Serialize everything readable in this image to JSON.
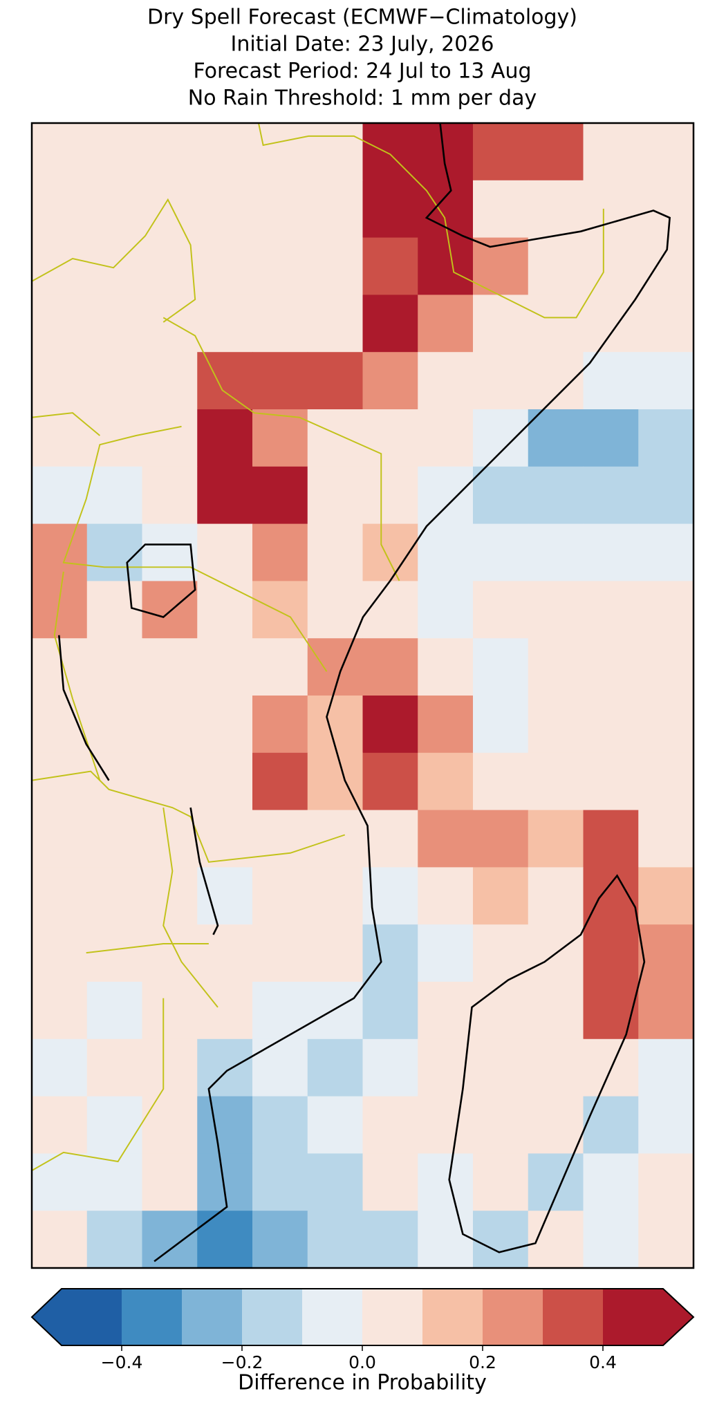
{
  "chart_data": {
    "type": "heatmap",
    "title": [
      "Dry Spell Forecast (ECMWF−Climatology)",
      "Initial Date: 23 July, 2026",
      "Forecast Period: 24 Jul to 13 Aug",
      "No Rain Threshold: 1 mm per day"
    ],
    "colorbar_label": "Difference in Probability",
    "levels": [
      -0.5,
      -0.4,
      -0.3,
      -0.2,
      -0.1,
      0,
      0.1,
      0.2,
      0.3,
      0.4,
      0.5
    ],
    "colors": [
      "#1f5fa5",
      "#3f8bc1",
      "#7fb4d7",
      "#b8d6e8",
      "#e7eef4",
      "#f9e6dd",
      "#f6c0a6",
      "#e8907a",
      "#cc5048",
      "#ac1a2c"
    ],
    "extend": "both",
    "cticks": [
      {
        "value": -0.4,
        "label": "−0.4"
      },
      {
        "value": -0.2,
        "label": "−0.2"
      },
      {
        "value": 0,
        "label": "0.0"
      },
      0.2,
      0.4
    ],
    "values": [
      [
        0.05,
        0.05,
        0.05,
        0.05,
        0.05,
        0.05,
        0.45,
        0.45,
        0.3,
        0.3,
        0.05,
        0.05
      ],
      [
        0.05,
        0.05,
        0.05,
        0.05,
        0.05,
        0.05,
        0.45,
        0.45,
        0.05,
        0.05,
        0.05,
        0.05
      ],
      [
        0.05,
        0.05,
        0.05,
        0.05,
        0.05,
        0.05,
        0.35,
        0.4,
        0.25,
        0.05,
        0.05,
        0.05
      ],
      [
        0.05,
        0.05,
        0.05,
        0.05,
        0.05,
        0.05,
        0.4,
        0.2,
        0.05,
        0.05,
        0.05,
        0.05
      ],
      [
        0.05,
        0.05,
        0.05,
        0.35,
        0.3,
        0.35,
        0.25,
        0.05,
        0.05,
        0.05,
        -0.05,
        -0.05
      ],
      [
        0.05,
        0.05,
        0.05,
        0.45,
        0.25,
        0.05,
        0.05,
        0.05,
        -0.1,
        -0.3,
        -0.3,
        -0.2
      ],
      [
        -0.05,
        -0.05,
        0.05,
        0.4,
        0.4,
        0.05,
        0.05,
        -0.1,
        -0.15,
        -0.15,
        -0.15,
        -0.15
      ],
      [
        0.2,
        -0.15,
        -0.1,
        0.05,
        0.25,
        0.05,
        0.15,
        -0.05,
        -0.1,
        -0.1,
        -0.1,
        -0.1
      ],
      [
        0.25,
        0.05,
        0.2,
        0.05,
        0.1,
        0.05,
        0.05,
        -0.05,
        0.05,
        0.05,
        0.05,
        0.05
      ],
      [
        0.05,
        0.05,
        0.05,
        0.05,
        0.05,
        0.25,
        0.25,
        0.05,
        -0.05,
        0.05,
        0.05,
        0.05
      ],
      [
        0.05,
        0.05,
        0.05,
        0.05,
        0.25,
        0.15,
        0.4,
        0.25,
        -0.05,
        0.05,
        0.05,
        0.05
      ],
      [
        0.05,
        0.05,
        0.05,
        0.05,
        0.3,
        0.15,
        0.35,
        0.15,
        0.05,
        0.05,
        0.05,
        0.05
      ],
      [
        0.05,
        0.05,
        0.05,
        0.05,
        0.05,
        0.05,
        0.05,
        0.2,
        0.25,
        0.15,
        0.3,
        0.05
      ],
      [
        0.05,
        0.05,
        0.05,
        -0.1,
        0.05,
        0.05,
        -0.1,
        0.05,
        0.15,
        0.05,
        0.35,
        0.15
      ],
      [
        0.05,
        0.05,
        0.05,
        0.05,
        0.05,
        0.05,
        -0.2,
        -0.1,
        0.05,
        0.05,
        0.35,
        0.25
      ],
      [
        0.05,
        -0.05,
        0.05,
        0.05,
        -0.1,
        -0.1,
        -0.2,
        0.05,
        0.05,
        0.05,
        0.3,
        0.2
      ],
      [
        -0.05,
        0.05,
        0.05,
        -0.15,
        -0.1,
        -0.15,
        -0.05,
        0.05,
        0.05,
        0.05,
        0.05,
        -0.05
      ],
      [
        0.05,
        -0.1,
        0.05,
        -0.3,
        -0.15,
        -0.1,
        0.05,
        0.05,
        0.05,
        0.05,
        -0.15,
        -0.1
      ],
      [
        -0.05,
        -0.1,
        0.05,
        -0.25,
        -0.2,
        -0.15,
        0.05,
        -0.05,
        0.05,
        -0.15,
        -0.1,
        0.05
      ],
      [
        0.05,
        -0.15,
        -0.25,
        -0.35,
        -0.3,
        -0.2,
        -0.15,
        -0.1,
        -0.15,
        0.05,
        -0.1,
        0.05
      ]
    ]
  }
}
